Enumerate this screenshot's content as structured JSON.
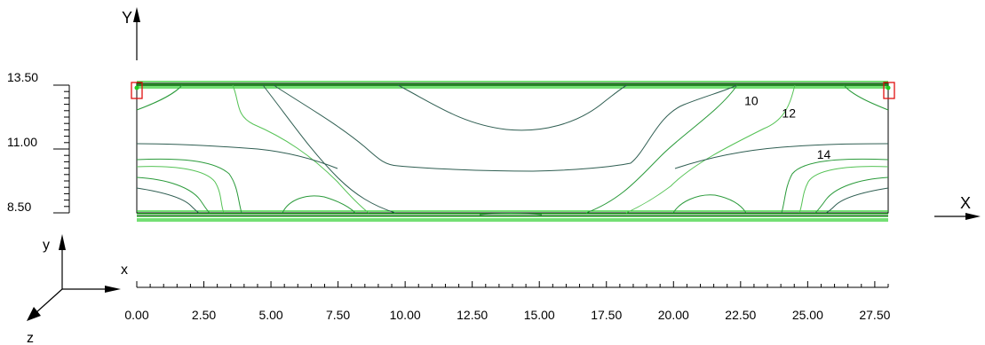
{
  "axes": {
    "global_x_label": "X",
    "global_y_label": "Y",
    "triad_x_label": "x",
    "triad_y_label": "y",
    "triad_z_label": "z"
  },
  "x_scale": {
    "range": [
      0,
      28
    ],
    "minor_step": 0.5,
    "labels": [
      "0.00",
      "2.50",
      "5.00",
      "7.50",
      "10.00",
      "12.50",
      "15.00",
      "17.50",
      "20.00",
      "22.50",
      "25.00",
      "27.50"
    ],
    "label_values": [
      0,
      2.5,
      5,
      7.5,
      10,
      12.5,
      15,
      17.5,
      20,
      22.5,
      25,
      27.5
    ]
  },
  "y_scale": {
    "range": [
      8.5,
      13.5
    ],
    "minor_step": 0.25,
    "labels": [
      "13.50",
      "11.00",
      "8.50"
    ],
    "label_values": [
      13.5,
      11,
      8.5
    ]
  },
  "contour_labels": [
    {
      "text": "10",
      "x": 22.9,
      "y": 12.9
    },
    {
      "text": "12",
      "x": 24.3,
      "y": 12.4
    },
    {
      "text": "14",
      "x": 25.6,
      "y": 10.8
    }
  ],
  "colors": {
    "boundary": "#000000",
    "contour_dark": "#2f5e52",
    "contour_mid": "#2a9a3a",
    "contour_light": "#54c254",
    "bright_green": "#22cc22",
    "marker_red": "#e01010",
    "axis": "#000000"
  }
}
